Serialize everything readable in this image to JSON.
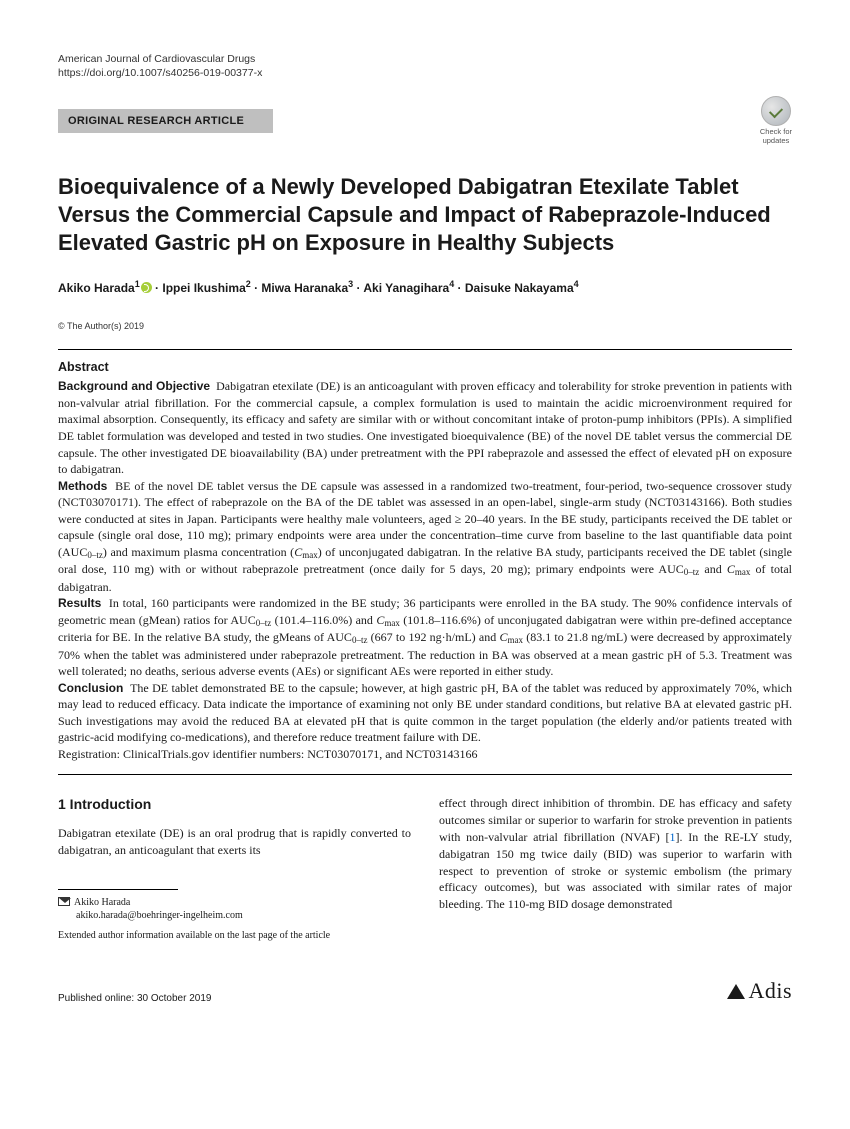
{
  "meta": {
    "journal": "American Journal of Cardiovascular Drugs",
    "doi": "https://doi.org/10.1007/s40256-019-00377-x"
  },
  "category": "ORIGINAL RESEARCH ARTICLE",
  "check_updates": {
    "line1": "Check for",
    "line2": "updates"
  },
  "title": "Bioequivalence of a Newly Developed Dabigatran Etexilate Tablet Versus the Commercial Capsule and Impact of Rabeprazole-Induced Elevated Gastric pH on Exposure in Healthy Subjects",
  "authors_html": "Akiko Harada<sup>1</sup><span class=\"orcid\"></span> · Ippei Ikushima<sup>2</sup> · Miwa Haranaka<sup>3</sup> · Aki Yanagihara<sup>4</sup> · Daisuke Nakayama<sup>4</sup>",
  "copyright": "© The Author(s) 2019",
  "abstract": {
    "heading": "Abstract",
    "background_label": "Background and Objective",
    "background": "Dabigatran etexilate (DE) is an anticoagulant with proven efficacy and tolerability for stroke prevention in patients with non-valvular atrial fibrillation. For the commercial capsule, a complex formulation is used to maintain the acidic microenvironment required for maximal absorption. Consequently, its efficacy and safety are similar with or without concomitant intake of proton-pump inhibitors (PPIs). A simplified DE tablet formulation was developed and tested in two studies. One investigated bioequivalence (BE) of the novel DE tablet versus the commercial DE capsule. The other investigated DE bioavailability (BA) under pretreatment with the PPI rabeprazole and assessed the effect of elevated pH on exposure to dabigatran.",
    "methods_label": "Methods",
    "methods_html": "BE of the novel DE tablet versus the DE capsule was assessed in a randomized two-treatment, four-period, two-sequence crossover study (NCT03070171). The effect of rabeprazole on the BA of the DE tablet was assessed in an open-label, single-arm study (NCT03143166). Both studies were conducted at sites in Japan. Participants were healthy male volunteers, aged ≥ 20–40 years. In the BE study, participants received the DE tablet or capsule (single oral dose, 110 mg); primary endpoints were area under the concentration–time curve from baseline to the last quantifiable data point (AUC<span class=\"sub\">0–tz</span>) and maximum plasma concentration (<span class=\"ital\">C</span><span class=\"sub\">max</span>) of unconjugated dabigatran. In the relative BA study, participants received the DE tablet (single oral dose, 110 mg) with or without rabeprazole pretreatment (once daily for 5 days, 20 mg); primary endpoints were AUC<span class=\"sub\">0–tz</span> and <span class=\"ital\">C</span><span class=\"sub\">max</span> of total dabigatran.",
    "results_label": "Results",
    "results_html": "In total, 160 participants were randomized in the BE study; 36 participants were enrolled in the BA study. The 90% confidence intervals of geometric mean (gMean) ratios for AUC<span class=\"sub\">0–tz</span> (101.4–116.0%) and <span class=\"ital\">C</span><span class=\"sub\">max</span> (101.8–116.6%) of unconjugated dabigatran were within pre-defined acceptance criteria for BE. In the relative BA study, the gMeans of AUC<span class=\"sub\">0–tz</span> (667 to 192 ng·h/mL) and <span class=\"ital\">C</span><span class=\"sub\">max</span> (83.1 to 21.8 ng/mL) were decreased by approximately 70% when the tablet was administered under rabeprazole pretreatment. The reduction in BA was observed at a mean gastric pH of 5.3. Treatment was well tolerated; no deaths, serious adverse events (AEs) or significant AEs were reported in either study.",
    "conclusion_label": "Conclusion",
    "conclusion": "The DE tablet demonstrated BE to the capsule; however, at high gastric pH, BA of the tablet was reduced by approximately 70%, which may lead to reduced efficacy. Data indicate the importance of examining not only BE under standard conditions, but relative BA at elevated gastric pH. Such investigations may avoid the reduced BA at elevated pH that is quite common in the target population (the elderly and/or patients treated with gastric-acid modifying co-medications), and therefore reduce treatment failure with DE.",
    "registration": "Registration: ClinicalTrials.gov identifier numbers: NCT03070171, and NCT03143166"
  },
  "section1": {
    "heading": "1  Introduction",
    "col1": "Dabigatran etexilate (DE) is an oral prodrug that is rapidly converted to dabigatran, an anticoagulant that exerts its",
    "col2_html": "effect through direct inhibition of thrombin. DE has efficacy and safety outcomes similar or superior to warfarin for stroke prevention in patients with non-valvular atrial fibrillation (NVAF) [<span class=\"ref-link\">1</span>]. In the RE-LY study, dabigatran 150 mg twice daily (BID) was superior to warfarin with respect to prevention of stroke or systemic embolism (the primary efficacy outcomes), but was associated with similar rates of major bleeding. The 110-mg BID dosage demonstrated"
  },
  "footnote": {
    "corr_name": "Akiko Harada",
    "corr_email": "akiko.harada@boehringer-ingelheim.com",
    "extended": "Extended author information available on the last page of the article"
  },
  "footer": {
    "published": "Published online: 30 October 2019",
    "brand": "Adis"
  }
}
